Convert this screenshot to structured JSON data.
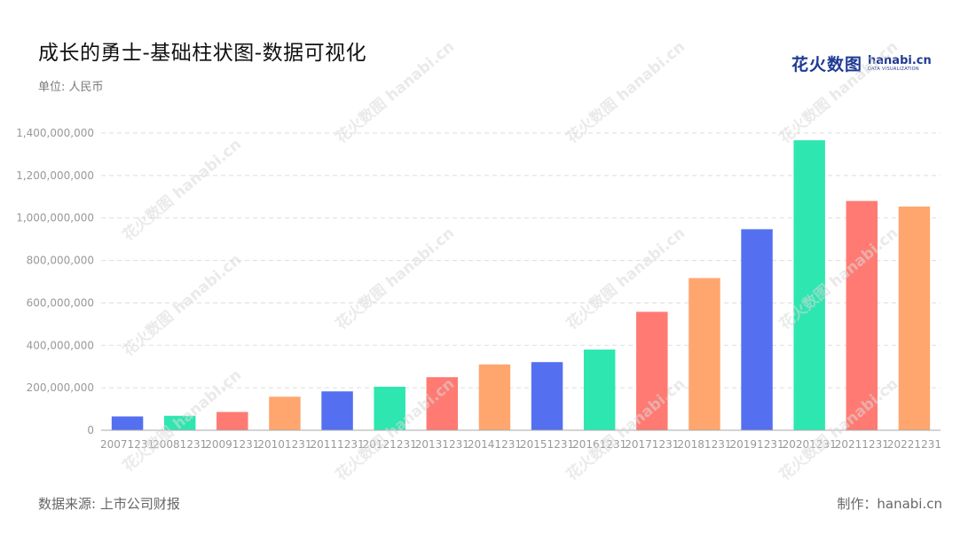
{
  "header": {
    "title": "成长的勇士-基础柱状图-数据可视化",
    "unit": "单位: 人民币",
    "logo_cn": "花火数图",
    "logo_domain": "hanabi.cn",
    "logo_sub": "DATA VISUALIZATION"
  },
  "footer": {
    "source": "数据来源: 上市公司财报",
    "credit": "制作：hanabi.cn"
  },
  "watermark": {
    "text": "花火数图 hanabi.cn"
  },
  "colors": {
    "bar_cycle": [
      "#5470f0",
      "#2ee6b0",
      "#ff7a72",
      "#ffa66e"
    ],
    "grid": "#dddddd",
    "axis_text": "#999999"
  },
  "chart_data": {
    "type": "bar",
    "categories": [
      "20071231",
      "20081231",
      "20091231",
      "20101231",
      "20111231",
      "20121231",
      "20131231",
      "20141231",
      "20151231",
      "20161231",
      "20171231",
      "20181231",
      "20191231",
      "20201231",
      "20211231",
      "20221231"
    ],
    "values": [
      65000000,
      68000000,
      86000000,
      158000000,
      183000000,
      205000000,
      250000000,
      310000000,
      321000000,
      380000000,
      558000000,
      717000000,
      947000000,
      1366000000,
      1080000000,
      1054000000
    ],
    "yticks": [
      "0",
      "200,000,000",
      "400,000,000",
      "600,000,000",
      "800,000,000",
      "1,000,000,000",
      "1,200,000,000",
      "1,400,000,000"
    ],
    "ylim": [
      0,
      1400000000
    ],
    "grid": true
  }
}
